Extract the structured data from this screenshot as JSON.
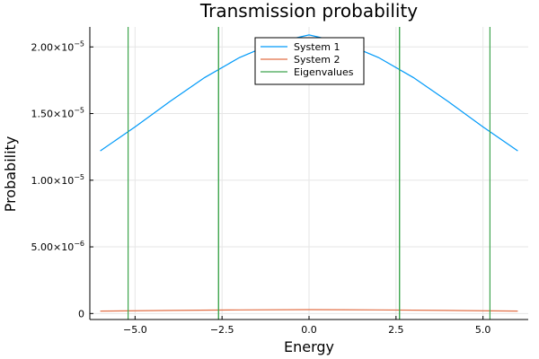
{
  "chart_data": {
    "type": "line",
    "title": "Transmission probability",
    "xlabel": "Energy",
    "ylabel": "Probability",
    "xlim": [
      -6.3,
      6.3
    ],
    "ylim": [
      -4.5e-07,
      2.15e-05
    ],
    "x_ticks": [
      {
        "value": -5.0,
        "label": "−5.0"
      },
      {
        "value": -2.5,
        "label": "−2.5"
      },
      {
        "value": 0.0,
        "label": "0.0"
      },
      {
        "value": 2.5,
        "label": "2.5"
      },
      {
        "value": 5.0,
        "label": "5.0"
      }
    ],
    "y_ticks": [
      {
        "value": 0,
        "mantissa": "0",
        "exp": ""
      },
      {
        "value": 5e-06,
        "mantissa": "5.00×10",
        "exp": "−6"
      },
      {
        "value": 1e-05,
        "mantissa": "1.00×10",
        "exp": "−5"
      },
      {
        "value": 1.5e-05,
        "mantissa": "1.50×10",
        "exp": "−5"
      },
      {
        "value": 2e-05,
        "mantissa": "2.00×10",
        "exp": "−5"
      }
    ],
    "grid": true,
    "legend_position": "top-center",
    "series": [
      {
        "name": "System 1",
        "color": "#009af9",
        "kind": "line",
        "x": [
          -6,
          -5,
          -4,
          -3,
          -2,
          -1,
          0,
          1,
          2,
          3,
          4,
          5,
          6
        ],
        "y": [
          1.22e-05,
          1.4e-05,
          1.59e-05,
          1.77e-05,
          1.92e-05,
          2.03e-05,
          2.09e-05,
          2.03e-05,
          1.92e-05,
          1.77e-05,
          1.59e-05,
          1.4e-05,
          1.22e-05
        ]
      },
      {
        "name": "System 2",
        "color": "#e26f46",
        "kind": "line",
        "x": [
          -6,
          -4,
          -2,
          0,
          2,
          4,
          6
        ],
        "y": [
          1.8e-07,
          2.3e-07,
          2.7e-07,
          2.9e-07,
          2.7e-07,
          2.3e-07,
          1.8e-07
        ]
      },
      {
        "name": "Eigenvalues",
        "color": "#3da44d",
        "kind": "vlines",
        "x": [
          -5.2,
          -2.6,
          -2.6,
          2.6,
          2.6,
          5.2
        ]
      }
    ]
  }
}
